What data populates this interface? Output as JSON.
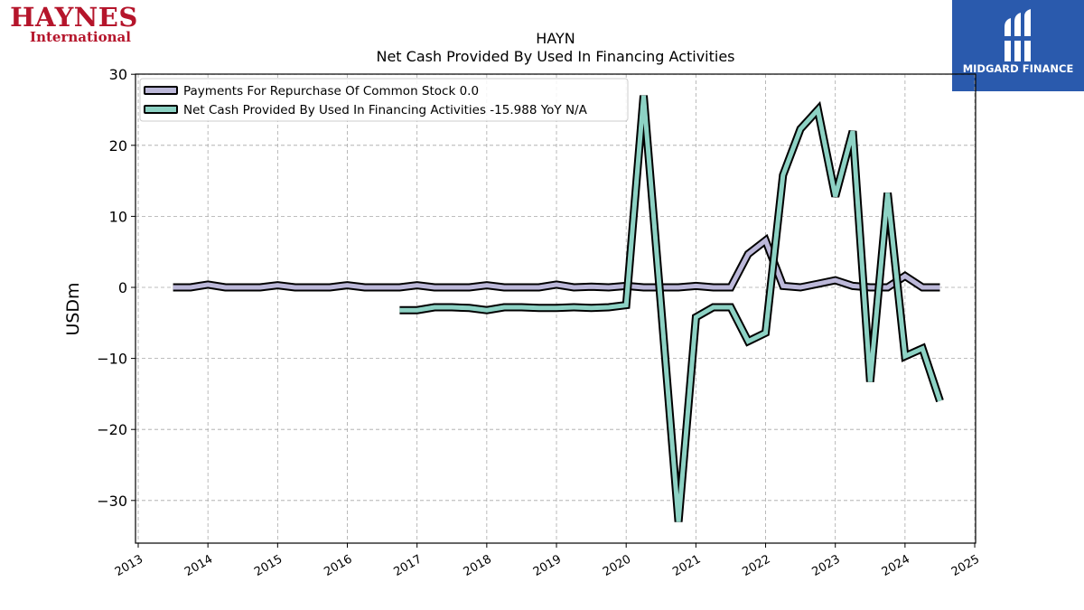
{
  "logos": {
    "left_line1": "HAYNES",
    "left_line2": "International",
    "right_text": "MIDGARD FINANCE"
  },
  "colors": {
    "repurchase": "#bcb8d9",
    "financing": "#8dd2c4",
    "outline": "#000000",
    "brand_red": "#b5152b",
    "brand_blue": "#2a5aad"
  },
  "chart_data": {
    "type": "line",
    "title": "HAYN",
    "subtitle": "Net Cash Provided By Used In Financing Activities",
    "ylabel": "USDm",
    "xlabel": "",
    "xlim": [
      2013,
      2025
    ],
    "ylim": [
      -36,
      30
    ],
    "x_ticks": [
      "2013",
      "2014",
      "2015",
      "2016",
      "2017",
      "2018",
      "2019",
      "2020",
      "2021",
      "2022",
      "2023",
      "2024",
      "2025"
    ],
    "y_ticks": [
      "30",
      "20",
      "10",
      "0",
      "−10",
      "−20",
      "−30"
    ],
    "grid": true,
    "legend_position": "top-left",
    "series": [
      {
        "name": "Payments For Repurchase Of Common Stock",
        "legend_label": "Payments For Repurchase Of Common Stock  0.0",
        "x": [
          2013.5,
          2013.75,
          2014.0,
          2014.25,
          2014.5,
          2014.75,
          2015.0,
          2015.25,
          2015.5,
          2015.75,
          2016.0,
          2016.25,
          2016.5,
          2016.75,
          2017.0,
          2017.25,
          2017.5,
          2017.75,
          2018.0,
          2018.25,
          2018.5,
          2018.75,
          2019.0,
          2019.25,
          2019.5,
          2019.75,
          2020.0,
          2020.25,
          2020.5,
          2020.75,
          2021.0,
          2021.25,
          2021.5,
          2021.75,
          2022.0,
          2022.25,
          2022.5,
          2022.75,
          2023.0,
          2023.25,
          2023.5,
          2023.75,
          2024.0,
          2024.25,
          2024.5
        ],
        "y": [
          0.0,
          0.0,
          0.4,
          0.0,
          0.0,
          0.0,
          0.3,
          0.0,
          0.0,
          0.0,
          0.3,
          0.0,
          0.0,
          0.0,
          0.3,
          0.0,
          0.0,
          0.0,
          0.3,
          0.0,
          0.0,
          0.0,
          0.4,
          0.0,
          0.1,
          0.0,
          0.2,
          0.0,
          0.0,
          0.0,
          0.2,
          0.0,
          0.0,
          4.7,
          6.6,
          0.2,
          0.0,
          0.5,
          1.0,
          0.2,
          0.0,
          0.0,
          1.6,
          0.0,
          0.0
        ]
      },
      {
        "name": "Net Cash Provided By Used In Financing Activities",
        "legend_label": "Net Cash Provided By Used In Financing Activities  -15.988 YoY N/A",
        "x": [
          2016.75,
          2017.0,
          2017.25,
          2017.5,
          2017.75,
          2018.0,
          2018.25,
          2018.5,
          2018.75,
          2019.0,
          2019.25,
          2019.5,
          2019.75,
          2020.0,
          2020.25,
          2020.5,
          2020.75,
          2021.0,
          2021.25,
          2021.5,
          2021.75,
          2022.0,
          2022.25,
          2022.5,
          2022.75,
          2023.0,
          2023.25,
          2023.5,
          2023.75,
          2024.0,
          2024.25,
          2024.5
        ],
        "y": [
          -3.2,
          -3.2,
          -2.8,
          -2.8,
          -2.9,
          -3.2,
          -2.8,
          -2.8,
          -2.9,
          -2.9,
          -2.8,
          -2.9,
          -2.8,
          -2.5,
          27.0,
          -2.7,
          -33.0,
          -4.2,
          -2.8,
          -2.8,
          -7.6,
          -6.4,
          15.8,
          22.3,
          25.0,
          12.8,
          22.0,
          -13.3,
          13.3,
          -9.7,
          -8.6,
          -15.988
        ]
      }
    ]
  }
}
